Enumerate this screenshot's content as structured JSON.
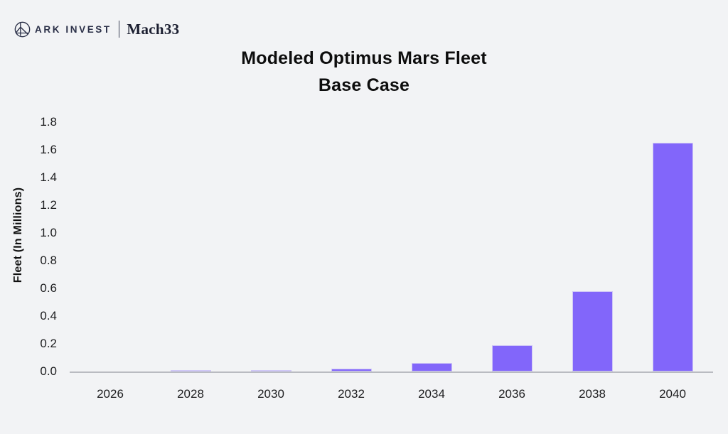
{
  "brand": {
    "ark_label": "ARK INVEST",
    "mach_label": "Mach33"
  },
  "title": {
    "line1": "Modeled Optimus Mars Fleet",
    "line2": "Base Case"
  },
  "chart_data": {
    "type": "bar",
    "title": "Modeled Optimus Mars Fleet — Base Case",
    "categories": [
      "2026",
      "2028",
      "2030",
      "2032",
      "2034",
      "2036",
      "2038",
      "2040"
    ],
    "values": [
      0.0,
      0.01,
      0.01,
      0.02,
      0.06,
      0.19,
      0.58,
      1.65
    ],
    "xlabel": "",
    "ylabel": "Fleet (In Millions)",
    "ylim": [
      0,
      1.8
    ],
    "yticks": [
      "0.0",
      "0.2",
      "0.4",
      "0.6",
      "0.8",
      "1.0",
      "1.2",
      "1.4",
      "1.6",
      "1.8"
    ],
    "grid": false,
    "legend_position": "none",
    "bar_color": "#8266fa",
    "bar_edge_color": "#cfc7f6",
    "axis_line_color": "#b9bbc1",
    "background_color": "#f2f3f5"
  }
}
